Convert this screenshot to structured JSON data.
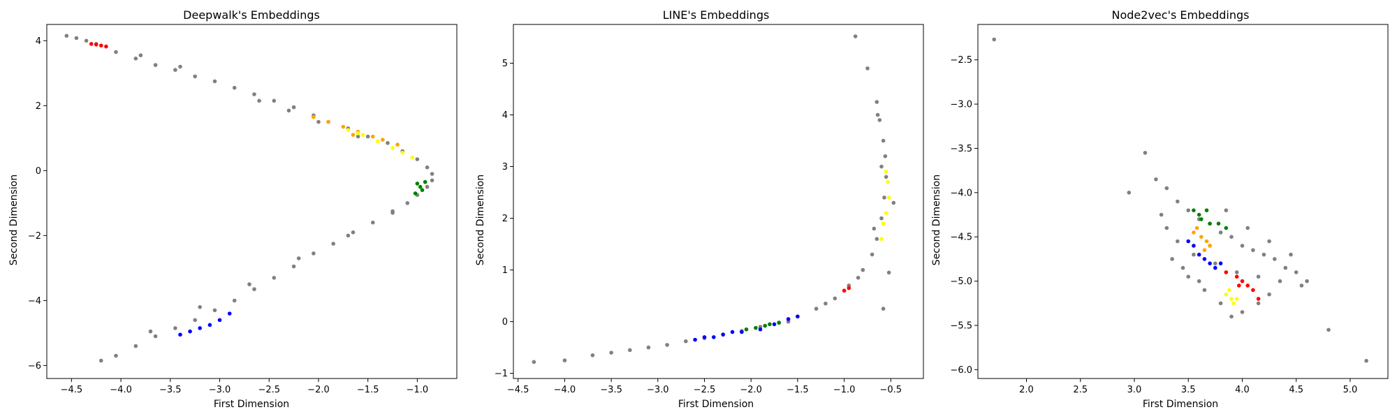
{
  "chart_data": [
    {
      "type": "scatter",
      "title": "Deepwalk's Embeddings",
      "xlabel": "First Dimension",
      "ylabel": "Second Dimension",
      "xlim": [
        -4.75,
        -0.6
      ],
      "ylim": [
        -6.4,
        4.5
      ],
      "xticks": [
        -4.5,
        -4.0,
        -3.5,
        -3.0,
        -2.5,
        -2.0,
        -1.5,
        -1.0
      ],
      "xtick_labels": [
        "−4.5",
        "−4.0",
        "−3.5",
        "−3.0",
        "−2.5",
        "−2.0",
        "−1.5",
        "−1.0"
      ],
      "yticks": [
        -6,
        -4,
        -2,
        0,
        2,
        4
      ],
      "ytick_labels": [
        "−6",
        "−4",
        "−2",
        "0",
        "2",
        "4"
      ],
      "grid": false,
      "series": [
        {
          "color": "#808080",
          "points": [
            [
              -4.55,
              4.15
            ],
            [
              -4.45,
              4.08
            ],
            [
              -4.35,
              4.0
            ],
            [
              -4.25,
              3.9
            ],
            [
              -4.05,
              3.65
            ],
            [
              -3.85,
              3.45
            ],
            [
              -3.65,
              3.25
            ],
            [
              -3.45,
              3.1
            ],
            [
              -3.25,
              2.9
            ],
            [
              -3.05,
              2.75
            ],
            [
              -2.85,
              2.55
            ],
            [
              -2.65,
              2.35
            ],
            [
              -2.45,
              2.15
            ],
            [
              -2.25,
              1.95
            ],
            [
              -2.05,
              1.7
            ],
            [
              -1.9,
              1.5
            ],
            [
              -1.7,
              1.3
            ],
            [
              -1.5,
              1.05
            ],
            [
              -1.3,
              0.85
            ],
            [
              -1.15,
              0.6
            ],
            [
              -1.0,
              0.35
            ],
            [
              -0.9,
              0.1
            ],
            [
              -0.85,
              -0.1
            ],
            [
              -0.85,
              -0.3
            ],
            [
              -0.9,
              -0.5
            ],
            [
              -1.0,
              -0.75
            ],
            [
              -1.1,
              -1.0
            ],
            [
              -1.25,
              -1.3
            ],
            [
              -1.45,
              -1.6
            ],
            [
              -1.65,
              -1.9
            ],
            [
              -1.85,
              -2.25
            ],
            [
              -2.05,
              -2.55
            ],
            [
              -2.25,
              -2.95
            ],
            [
              -2.45,
              -3.3
            ],
            [
              -2.65,
              -3.65
            ],
            [
              -2.85,
              -4.0
            ],
            [
              -3.05,
              -4.3
            ],
            [
              -3.25,
              -4.6
            ],
            [
              -3.45,
              -4.85
            ],
            [
              -3.65,
              -5.1
            ],
            [
              -3.85,
              -5.4
            ],
            [
              -4.05,
              -5.7
            ],
            [
              -4.2,
              -5.85
            ],
            [
              -2.6,
              2.15
            ],
            [
              -2.3,
              1.85
            ],
            [
              -2.0,
              1.5
            ],
            [
              -1.6,
              1.05
            ],
            [
              -1.25,
              -1.25
            ],
            [
              -1.7,
              -2.0
            ],
            [
              -2.2,
              -2.7
            ],
            [
              -2.7,
              -3.5
            ],
            [
              -3.2,
              -4.2
            ],
            [
              -3.7,
              -4.95
            ],
            [
              -3.4,
              3.2
            ],
            [
              -3.8,
              3.55
            ]
          ]
        },
        {
          "color": "#ff0000",
          "points": [
            [
              -4.3,
              3.9
            ],
            [
              -4.25,
              3.88
            ],
            [
              -4.2,
              3.85
            ],
            [
              -4.15,
              3.82
            ]
          ]
        },
        {
          "color": "#ffa500",
          "points": [
            [
              -2.05,
              1.65
            ],
            [
              -1.9,
              1.5
            ],
            [
              -1.75,
              1.35
            ],
            [
              -1.6,
              1.2
            ],
            [
              -1.45,
              1.05
            ],
            [
              -1.35,
              0.95
            ],
            [
              -1.2,
              0.8
            ],
            [
              -1.65,
              1.1
            ]
          ]
        },
        {
          "color": "#ffff00",
          "points": [
            [
              -1.7,
              1.25
            ],
            [
              -1.55,
              1.1
            ],
            [
              -1.4,
              0.9
            ],
            [
              -1.25,
              0.7
            ],
            [
              -1.15,
              0.55
            ],
            [
              -1.05,
              0.4
            ],
            [
              -1.6,
              1.15
            ]
          ]
        },
        {
          "color": "#008000",
          "points": [
            [
              -1.0,
              -0.4
            ],
            [
              -0.97,
              -0.5
            ],
            [
              -0.95,
              -0.6
            ],
            [
              -1.02,
              -0.7
            ],
            [
              -0.92,
              -0.35
            ]
          ]
        },
        {
          "color": "#0000ff",
          "points": [
            [
              -3.4,
              -5.05
            ],
            [
              -3.3,
              -4.95
            ],
            [
              -3.2,
              -4.85
            ],
            [
              -3.1,
              -4.75
            ],
            [
              -3.0,
              -4.6
            ],
            [
              -2.9,
              -4.4
            ]
          ]
        }
      ]
    },
    {
      "type": "scatter",
      "title": "LINE's Embeddings",
      "xlabel": "First Dimension",
      "ylabel": "Second Dimension",
      "xlim": [
        -4.55,
        -0.15
      ],
      "ylim": [
        -1.1,
        5.75
      ],
      "xticks": [
        -4.5,
        -4.0,
        -3.5,
        -3.0,
        -2.5,
        -2.0,
        -1.5,
        -1.0,
        -0.5
      ],
      "xtick_labels": [
        "−4.5",
        "−4.0",
        "−3.5",
        "−3.0",
        "−2.5",
        "−2.0",
        "−1.5",
        "−1.0",
        "−0.5"
      ],
      "yticks": [
        -1,
        0,
        1,
        2,
        3,
        4,
        5
      ],
      "ytick_labels": [
        "−1",
        "0",
        "1",
        "2",
        "3",
        "4",
        "5"
      ],
      "grid": false,
      "series": [
        {
          "color": "#808080",
          "points": [
            [
              -4.33,
              -0.78
            ],
            [
              -4.0,
              -0.75
            ],
            [
              -3.7,
              -0.65
            ],
            [
              -3.5,
              -0.6
            ],
            [
              -3.3,
              -0.55
            ],
            [
              -3.1,
              -0.5
            ],
            [
              -2.9,
              -0.45
            ],
            [
              -2.7,
              -0.38
            ],
            [
              -2.5,
              -0.32
            ],
            [
              -2.3,
              -0.25
            ],
            [
              -2.1,
              -0.18
            ],
            [
              -1.9,
              -0.1
            ],
            [
              -1.7,
              -0.02
            ],
            [
              -1.5,
              0.1
            ],
            [
              -1.3,
              0.25
            ],
            [
              -1.1,
              0.45
            ],
            [
              -0.95,
              0.7
            ],
            [
              -0.8,
              1.0
            ],
            [
              -0.7,
              1.3
            ],
            [
              -0.65,
              1.6
            ],
            [
              -0.6,
              2.0
            ],
            [
              -0.57,
              2.4
            ],
            [
              -0.55,
              2.8
            ],
            [
              -0.56,
              3.2
            ],
            [
              -0.58,
              3.5
            ],
            [
              -0.62,
              3.9
            ],
            [
              -0.65,
              4.25
            ],
            [
              -0.75,
              4.9
            ],
            [
              -0.88,
              5.52
            ],
            [
              -0.52,
              0.95
            ],
            [
              -0.58,
              0.25
            ],
            [
              -0.47,
              2.3
            ],
            [
              -1.6,
              0.0
            ],
            [
              -1.2,
              0.35
            ],
            [
              -0.85,
              0.85
            ],
            [
              -0.68,
              1.8
            ],
            [
              -0.6,
              3.0
            ],
            [
              -0.64,
              4.0
            ]
          ]
        },
        {
          "color": "#0000ff",
          "points": [
            [
              -2.6,
              -0.35
            ],
            [
              -2.5,
              -0.3
            ],
            [
              -2.4,
              -0.3
            ],
            [
              -2.3,
              -0.25
            ],
            [
              -2.1,
              -0.2
            ],
            [
              -1.9,
              -0.15
            ],
            [
              -1.75,
              -0.05
            ],
            [
              -1.6,
              0.05
            ],
            [
              -1.5,
              0.1
            ],
            [
              -2.2,
              -0.2
            ]
          ]
        },
        {
          "color": "#008000",
          "points": [
            [
              -2.05,
              -0.15
            ],
            [
              -1.95,
              -0.12
            ],
            [
              -1.85,
              -0.08
            ],
            [
              -1.7,
              -0.02
            ],
            [
              -1.8,
              -0.05
            ]
          ]
        },
        {
          "color": "#ffff00",
          "points": [
            [
              -0.55,
              2.9
            ],
            [
              -0.53,
              2.7
            ],
            [
              -0.52,
              2.4
            ],
            [
              -0.55,
              2.1
            ],
            [
              -0.58,
              1.9
            ],
            [
              -0.6,
              1.6
            ]
          ]
        },
        {
          "color": "#ff0000",
          "points": [
            [
              -1.0,
              0.6
            ],
            [
              -0.95,
              0.65
            ]
          ]
        }
      ]
    },
    {
      "type": "scatter",
      "title": "Node2vec's Embeddings",
      "xlabel": "First Dimension",
      "ylabel": "Second Dimension",
      "xlim": [
        1.55,
        5.35
      ],
      "ylim": [
        -6.1,
        -2.1
      ],
      "xticks": [
        2.0,
        2.5,
        3.0,
        3.5,
        4.0,
        4.5,
        5.0
      ],
      "xtick_labels": [
        "2.0",
        "2.5",
        "3.0",
        "3.5",
        "4.0",
        "4.5",
        "5.0"
      ],
      "yticks": [
        -6.0,
        -5.5,
        -5.0,
        -4.5,
        -4.0,
        -3.5,
        -3.0,
        -2.5
      ],
      "ytick_labels": [
        "−6.0",
        "−5.5",
        "−5.0",
        "−4.5",
        "−4.0",
        "−3.5",
        "−3.0",
        "−2.5"
      ],
      "grid": false,
      "series": [
        {
          "color": "#808080",
          "points": [
            [
              1.7,
              -2.27
            ],
            [
              3.1,
              -3.55
            ],
            [
              2.95,
              -4.0
            ],
            [
              5.15,
              -5.9
            ],
            [
              4.8,
              -5.55
            ],
            [
              3.2,
              -3.85
            ],
            [
              3.3,
              -3.95
            ],
            [
              3.4,
              -4.1
            ],
            [
              3.5,
              -4.2
            ],
            [
              3.6,
              -4.3
            ],
            [
              3.7,
              -4.35
            ],
            [
              3.8,
              -4.45
            ],
            [
              3.9,
              -4.5
            ],
            [
              4.0,
              -4.6
            ],
            [
              4.1,
              -4.65
            ],
            [
              4.2,
              -4.7
            ],
            [
              4.3,
              -4.75
            ],
            [
              4.4,
              -4.85
            ],
            [
              4.5,
              -4.9
            ],
            [
              4.6,
              -5.0
            ],
            [
              4.55,
              -5.05
            ],
            [
              4.35,
              -5.0
            ],
            [
              4.15,
              -4.95
            ],
            [
              3.95,
              -4.9
            ],
            [
              3.75,
              -4.8
            ],
            [
              3.55,
              -4.7
            ],
            [
              3.4,
              -4.55
            ],
            [
              3.3,
              -4.4
            ],
            [
              3.25,
              -4.25
            ],
            [
              3.35,
              -4.75
            ],
            [
              3.5,
              -4.95
            ],
            [
              3.65,
              -5.1
            ],
            [
              3.8,
              -5.25
            ],
            [
              3.9,
              -5.4
            ],
            [
              4.0,
              -5.35
            ],
            [
              4.15,
              -5.25
            ],
            [
              4.25,
              -5.15
            ],
            [
              3.7,
              -4.6
            ],
            [
              4.05,
              -4.4
            ],
            [
              3.85,
              -4.2
            ],
            [
              4.45,
              -4.7
            ],
            [
              4.25,
              -4.55
            ],
            [
              3.6,
              -5.0
            ],
            [
              3.45,
              -4.85
            ]
          ]
        },
        {
          "color": "#008000",
          "points": [
            [
              3.55,
              -4.2
            ],
            [
              3.62,
              -4.3
            ],
            [
              3.7,
              -4.35
            ],
            [
              3.78,
              -4.35
            ],
            [
              3.85,
              -4.4
            ],
            [
              3.6,
              -4.25
            ],
            [
              3.67,
              -4.2
            ]
          ]
        },
        {
          "color": "#ffa500",
          "points": [
            [
              3.58,
              -4.4
            ],
            [
              3.62,
              -4.5
            ],
            [
              3.67,
              -4.55
            ],
            [
              3.7,
              -4.6
            ],
            [
              3.55,
              -4.45
            ],
            [
              3.65,
              -4.65
            ]
          ]
        },
        {
          "color": "#0000ff",
          "points": [
            [
              3.5,
              -4.55
            ],
            [
              3.55,
              -4.6
            ],
            [
              3.6,
              -4.7
            ],
            [
              3.65,
              -4.75
            ],
            [
              3.7,
              -4.8
            ],
            [
              3.8,
              -4.8
            ],
            [
              3.75,
              -4.85
            ]
          ]
        },
        {
          "color": "#ff0000",
          "points": [
            [
              3.95,
              -4.95
            ],
            [
              4.0,
              -5.0
            ],
            [
              4.05,
              -5.05
            ],
            [
              4.1,
              -5.1
            ],
            [
              4.15,
              -5.2
            ],
            [
              3.97,
              -5.05
            ],
            [
              3.85,
              -4.9
            ]
          ]
        },
        {
          "color": "#ffff00",
          "points": [
            [
              3.85,
              -5.15
            ],
            [
              3.9,
              -5.2
            ],
            [
              3.95,
              -5.2
            ],
            [
              3.92,
              -5.25
            ],
            [
              3.88,
              -5.1
            ]
          ]
        }
      ]
    }
  ]
}
